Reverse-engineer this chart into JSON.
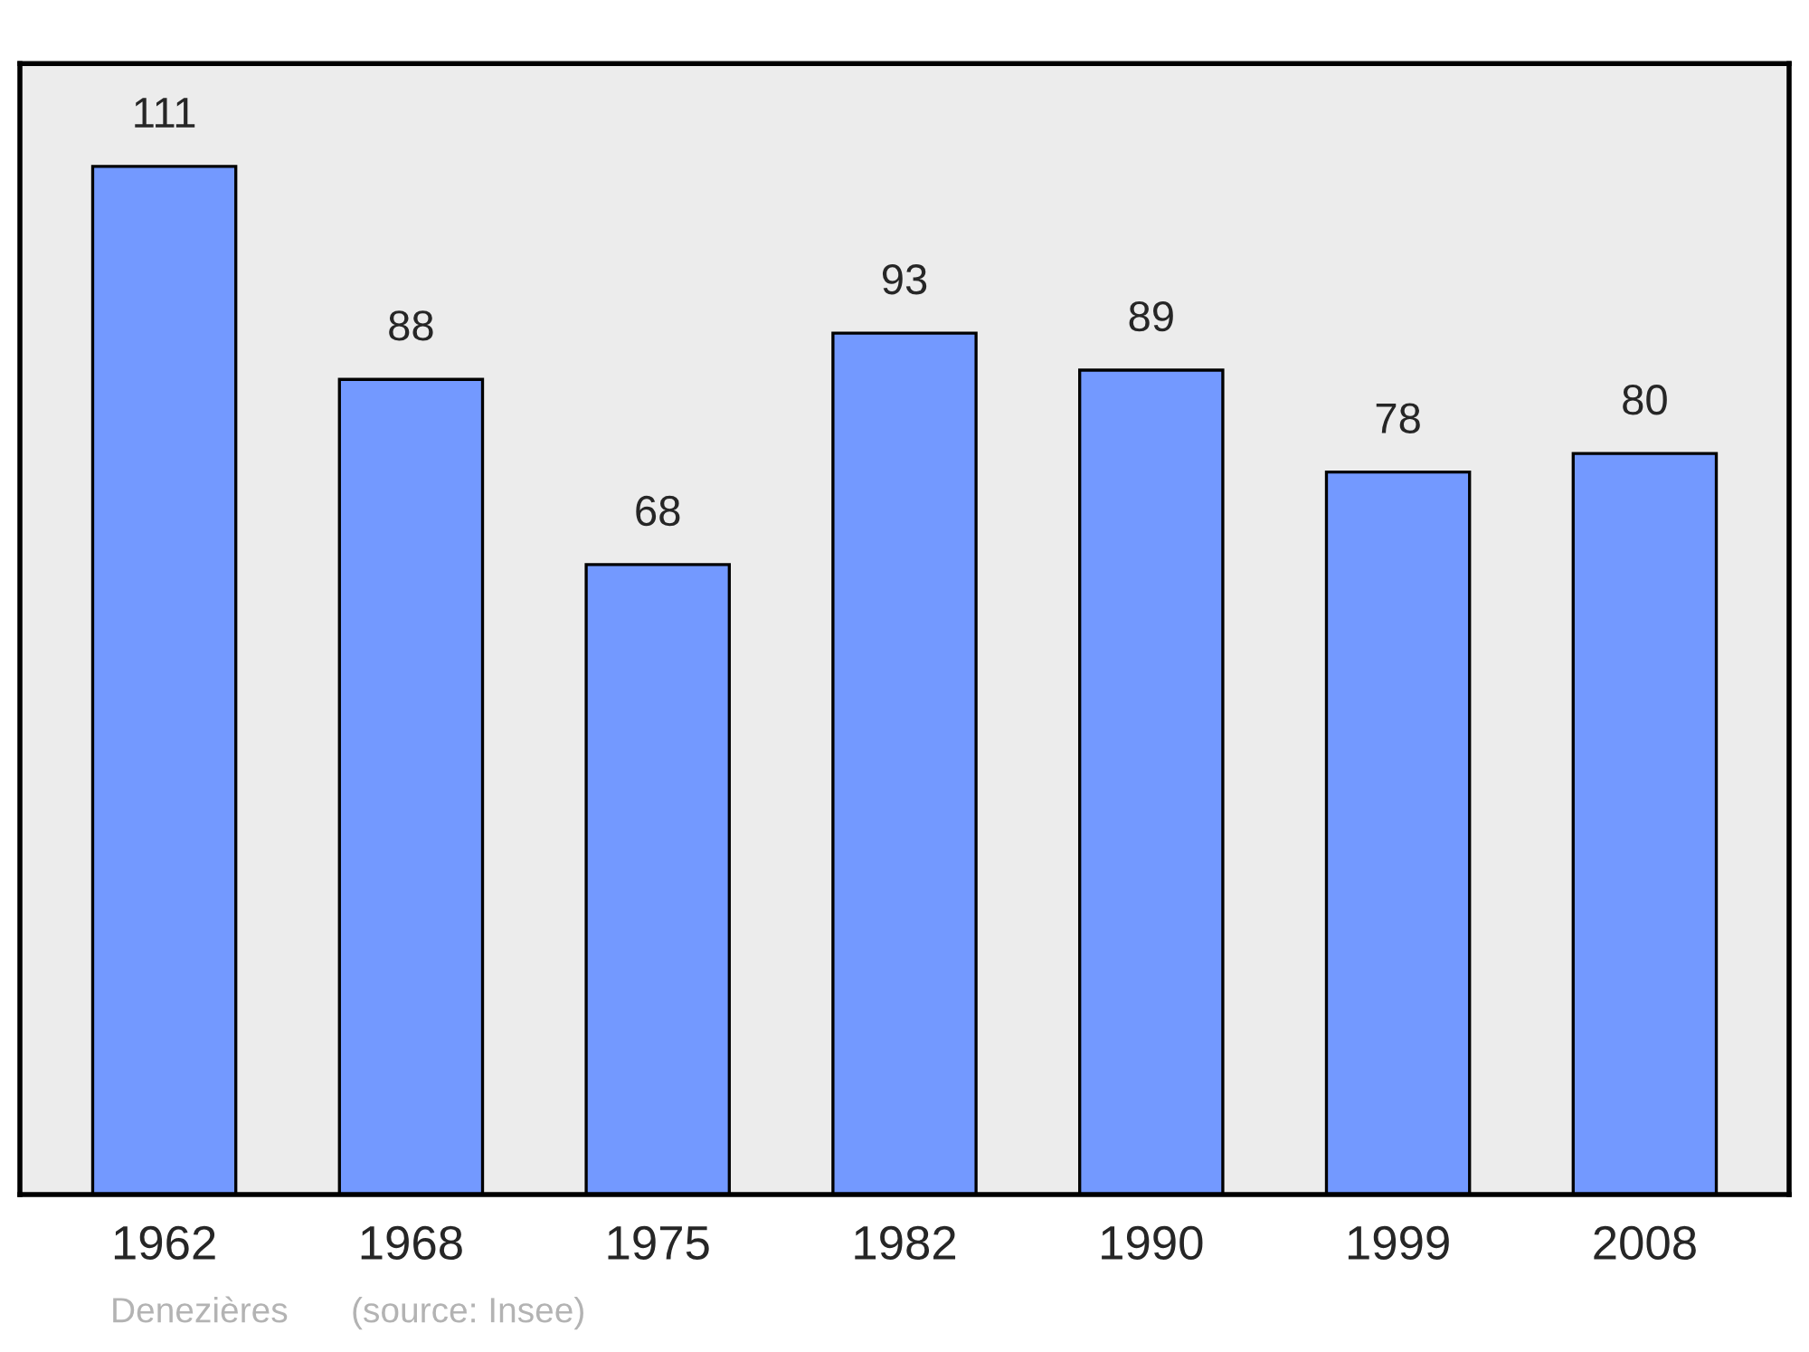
{
  "chart_data": {
    "type": "bar",
    "categories": [
      "1962",
      "1968",
      "1975",
      "1982",
      "1990",
      "1999",
      "2008"
    ],
    "values": [
      111,
      88,
      68,
      93,
      89,
      78,
      80
    ],
    "color": "#7399ff",
    "data_labels": true,
    "grid": false,
    "annotations": [
      "Denezières",
      "(source: Insee)"
    ]
  }
}
